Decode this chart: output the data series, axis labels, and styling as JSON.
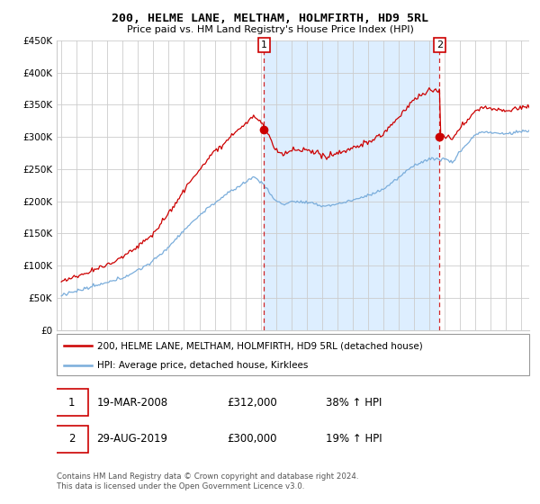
{
  "title": "200, HELME LANE, MELTHAM, HOLMFIRTH, HD9 5RL",
  "subtitle": "Price paid vs. HM Land Registry's House Price Index (HPI)",
  "ylim": [
    0,
    450000
  ],
  "yticks": [
    0,
    50000,
    100000,
    150000,
    200000,
    250000,
    300000,
    350000,
    400000,
    450000
  ],
  "ytick_labels": [
    "£0",
    "£50K",
    "£100K",
    "£150K",
    "£200K",
    "£250K",
    "£300K",
    "£350K",
    "£400K",
    "£450K"
  ],
  "house_color": "#cc0000",
  "hpi_color": "#7aaddb",
  "shade_color": "#ddeeff",
  "vline_color": "#cc0000",
  "background_color": "#ffffff",
  "grid_color": "#cccccc",
  "legend_label_house": "200, HELME LANE, MELTHAM, HOLMFIRTH, HD9 5RL (detached house)",
  "legend_label_hpi": "HPI: Average price, detached house, Kirklees",
  "annotation_1_date": "19-MAR-2008",
  "annotation_1_price": "£312,000",
  "annotation_1_hpi": "38% ↑ HPI",
  "annotation_2_date": "29-AUG-2019",
  "annotation_2_price": "£300,000",
  "annotation_2_hpi": "19% ↑ HPI",
  "sale1_year": 2008.21,
  "sale1_price": 312000,
  "sale2_year": 2019.66,
  "sale2_price": 300000,
  "xlim_left": 1994.7,
  "xlim_right": 2025.5,
  "footnote": "Contains HM Land Registry data © Crown copyright and database right 2024.\nThis data is licensed under the Open Government Licence v3.0."
}
